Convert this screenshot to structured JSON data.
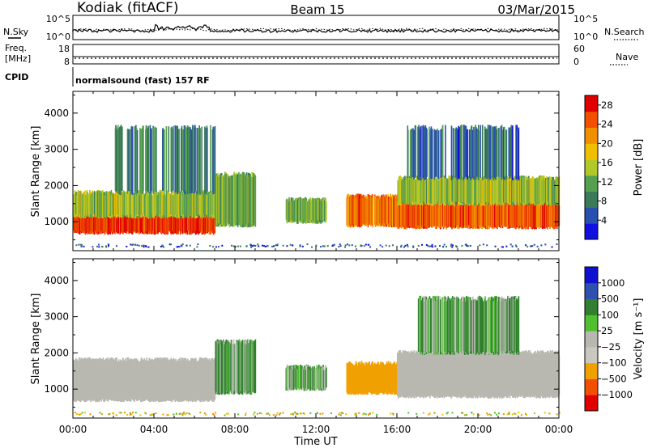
{
  "header": {
    "station": "Kodiak (fitACF)",
    "beam": "Beam 15",
    "date": "03/Mar/2015"
  },
  "strips": {
    "nsky_label": "N.Sky",
    "nsky_ticks": [
      "10^5",
      "10^0"
    ],
    "nsearch_label": "N.Search",
    "nsearch_ticks": [
      "10^5",
      "10^0"
    ],
    "freq_label_line1": "Freq.",
    "freq_label_line2": "[MHz]",
    "freq_ticks": [
      "18",
      "8"
    ],
    "nave_label": "Nave",
    "nave_ticks": [
      "60",
      "0"
    ],
    "cpid_label": "CPID",
    "cpid_text": "normalsound (fast) 157 RF"
  },
  "colors": {
    "power_scale": [
      "#1010e0",
      "#2850b0",
      "#3a7a5a",
      "#55a050",
      "#b0c828",
      "#f0c000",
      "#f09000",
      "#f05000",
      "#e00000"
    ],
    "velocity_scale": [
      "#e00000",
      "#f05000",
      "#f0a000",
      "#c8c8c0",
      "#b8b8b0",
      "#50c030",
      "#308030",
      "#3050b0",
      "#1010d0"
    ],
    "ground_scatter": "#b8b8b0"
  },
  "chart_data": [
    {
      "type": "heatmap",
      "name": "power-panel",
      "ylabel": "Slant Range [km]",
      "y_ticks": [
        1000,
        2000,
        3000,
        4000
      ],
      "ylim": [
        200,
        4600
      ],
      "x_ticks": [
        "00:00",
        "04:00",
        "08:00",
        "12:00",
        "16:00",
        "20:00",
        "00:00"
      ],
      "xlim_hours": [
        0,
        24
      ],
      "colorbar": {
        "label": "Power [dB]",
        "ticks": [
          4,
          8,
          12,
          16,
          20,
          24,
          28
        ],
        "range": [
          0,
          30
        ]
      },
      "regions": [
        {
          "t_start": 0.0,
          "t_end": 7.0,
          "r_low": 700,
          "r_high": 1150,
          "level": 28
        },
        {
          "t_start": 0.0,
          "t_end": 7.2,
          "r_low": 1150,
          "r_high": 1800,
          "level": 14
        },
        {
          "t_start": 2.0,
          "t_end": 7.0,
          "r_low": 1800,
          "r_high": 3600,
          "level": 8
        },
        {
          "t_start": 7.0,
          "t_end": 9.0,
          "r_low": 900,
          "r_high": 2300,
          "level": 12
        },
        {
          "t_start": 10.5,
          "t_end": 12.5,
          "r_low": 1000,
          "r_high": 1600,
          "level": 12
        },
        {
          "t_start": 13.5,
          "t_end": 16.0,
          "r_low": 900,
          "r_high": 1700,
          "level": 24
        },
        {
          "t_start": 16.0,
          "t_end": 24.0,
          "r_low": 850,
          "r_high": 1500,
          "level": 26
        },
        {
          "t_start": 16.0,
          "t_end": 24.0,
          "r_low": 1500,
          "r_high": 2200,
          "level": 14
        },
        {
          "t_start": 16.5,
          "t_end": 22.0,
          "r_low": 2200,
          "r_high": 3600,
          "level": 6
        }
      ]
    },
    {
      "type": "heatmap",
      "name": "velocity-panel",
      "ylabel": "Slant Range [km]",
      "y_ticks": [
        1000,
        2000,
        3000,
        4000
      ],
      "ylim": [
        200,
        4600
      ],
      "x_ticks": [
        "00:00",
        "04:00",
        "08:00",
        "12:00",
        "16:00",
        "20:00",
        "00:00"
      ],
      "xlabel": "Time UT",
      "xlim_hours": [
        0,
        24
      ],
      "colorbar": {
        "label": "Velocity [m s⁻¹]",
        "ticks": [
          "1000",
          "500",
          "100",
          "25",
          "−25",
          "−100",
          "−500",
          "−1000"
        ]
      },
      "regions": [
        {
          "t_start": 0.0,
          "t_end": 7.0,
          "r_low": 700,
          "r_high": 1800,
          "value": "ground"
        },
        {
          "t_start": 7.0,
          "t_end": 9.0,
          "r_low": 900,
          "r_high": 2300,
          "value": 100
        },
        {
          "t_start": 10.5,
          "t_end": 12.5,
          "r_low": 1000,
          "r_high": 1600,
          "value": 100
        },
        {
          "t_start": 13.5,
          "t_end": 16.0,
          "r_low": 900,
          "r_high": 1700,
          "value": -300
        },
        {
          "t_start": 16.0,
          "t_end": 24.0,
          "r_low": 800,
          "r_high": 2000,
          "value": "ground"
        },
        {
          "t_start": 17.0,
          "t_end": 22.0,
          "r_low": 2000,
          "r_high": 3500,
          "value": 100
        }
      ]
    }
  ]
}
